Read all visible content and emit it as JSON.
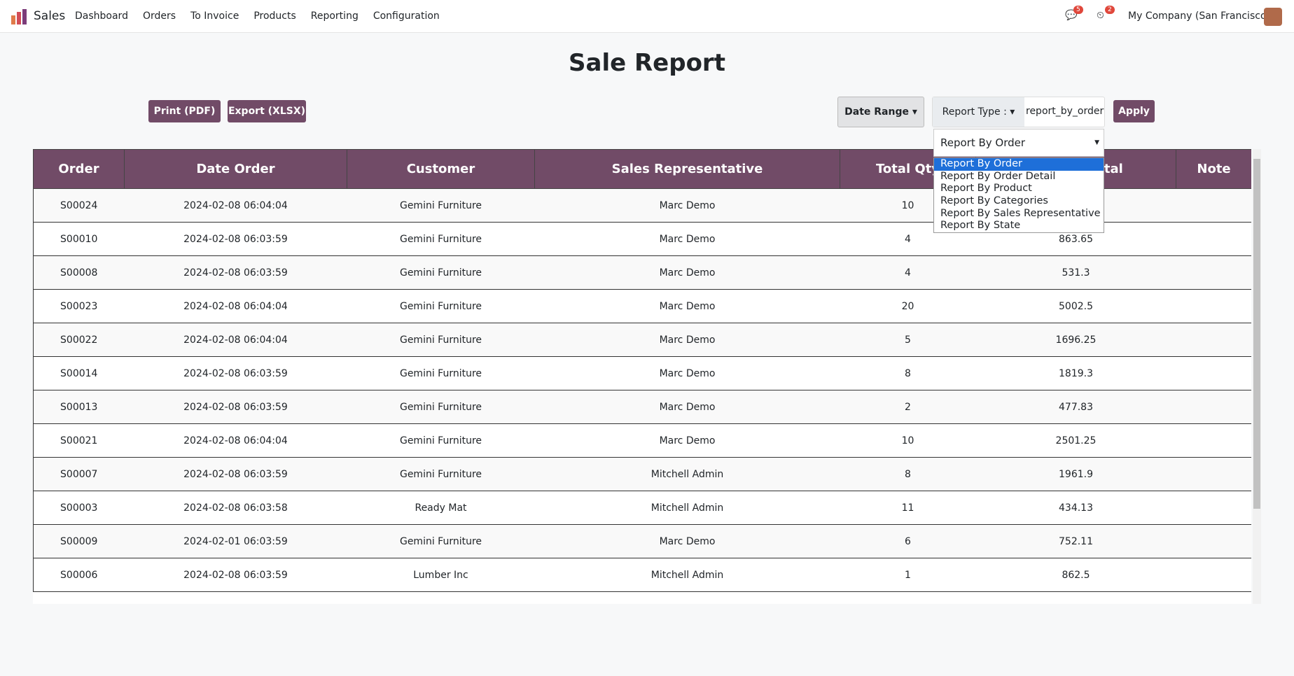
{
  "navbar": {
    "app": "Sales",
    "menu": [
      "Dashboard",
      "Orders",
      "To Invoice",
      "Products",
      "Reporting",
      "Configuration"
    ],
    "messages_badge": "5",
    "activities_badge": "2",
    "company": "My Company (San Francisco)"
  },
  "header": {
    "title": "Sale Report"
  },
  "toolbar": {
    "print": "Print (PDF)",
    "export": "Export (XLSX)",
    "date_range": "Date Range",
    "report_type_label": "Report Type :",
    "report_type_value": "report_by_order",
    "apply": "Apply"
  },
  "dropdown": {
    "selected": "Report By Order",
    "options": [
      "Report By Order",
      "Report By Order Detail",
      "Report By Product",
      "Report By Categories",
      "Report By Sales Representative",
      "Report By State"
    ]
  },
  "table": {
    "columns": [
      "Order",
      "Date Order",
      "Customer",
      "Sales Representative",
      "Total Qty",
      "Amount Total",
      "Note"
    ],
    "rows": [
      [
        "S00024",
        "2024-02-08 06:04:04",
        "Gemini Furniture",
        "Marc Demo",
        "10",
        null
      ],
      [
        "S00010",
        "2024-02-08 06:03:59",
        "Gemini Furniture",
        "Marc Demo",
        "4",
        "863.65"
      ],
      [
        "S00008",
        "2024-02-08 06:03:59",
        "Gemini Furniture",
        "Marc Demo",
        "4",
        "531.3"
      ],
      [
        "S00023",
        "2024-02-08 06:04:04",
        "Gemini Furniture",
        "Marc Demo",
        "20",
        "5002.5"
      ],
      [
        "S00022",
        "2024-02-08 06:04:04",
        "Gemini Furniture",
        "Marc Demo",
        "5",
        "1696.25"
      ],
      [
        "S00014",
        "2024-02-08 06:03:59",
        "Gemini Furniture",
        "Marc Demo",
        "8",
        "1819.3"
      ],
      [
        "S00013",
        "2024-02-08 06:03:59",
        "Gemini Furniture",
        "Marc Demo",
        "2",
        "477.83"
      ],
      [
        "S00021",
        "2024-02-08 06:04:04",
        "Gemini Furniture",
        "Marc Demo",
        "10",
        "2501.25"
      ],
      [
        "S00007",
        "2024-02-08 06:03:59",
        "Gemini Furniture",
        "Mitchell Admin",
        "8",
        "1961.9"
      ],
      [
        "S00003",
        "2024-02-08 06:03:58",
        "Ready Mat",
        "Mitchell Admin",
        "11",
        "434.13"
      ],
      [
        "S00009",
        "2024-02-01 06:03:59",
        "Gemini Furniture",
        "Marc Demo",
        "6",
        "752.11"
      ],
      [
        "S00006",
        "2024-02-08 06:03:59",
        "Lumber Inc",
        "Mitchell Admin",
        "1",
        "862.5"
      ]
    ]
  }
}
